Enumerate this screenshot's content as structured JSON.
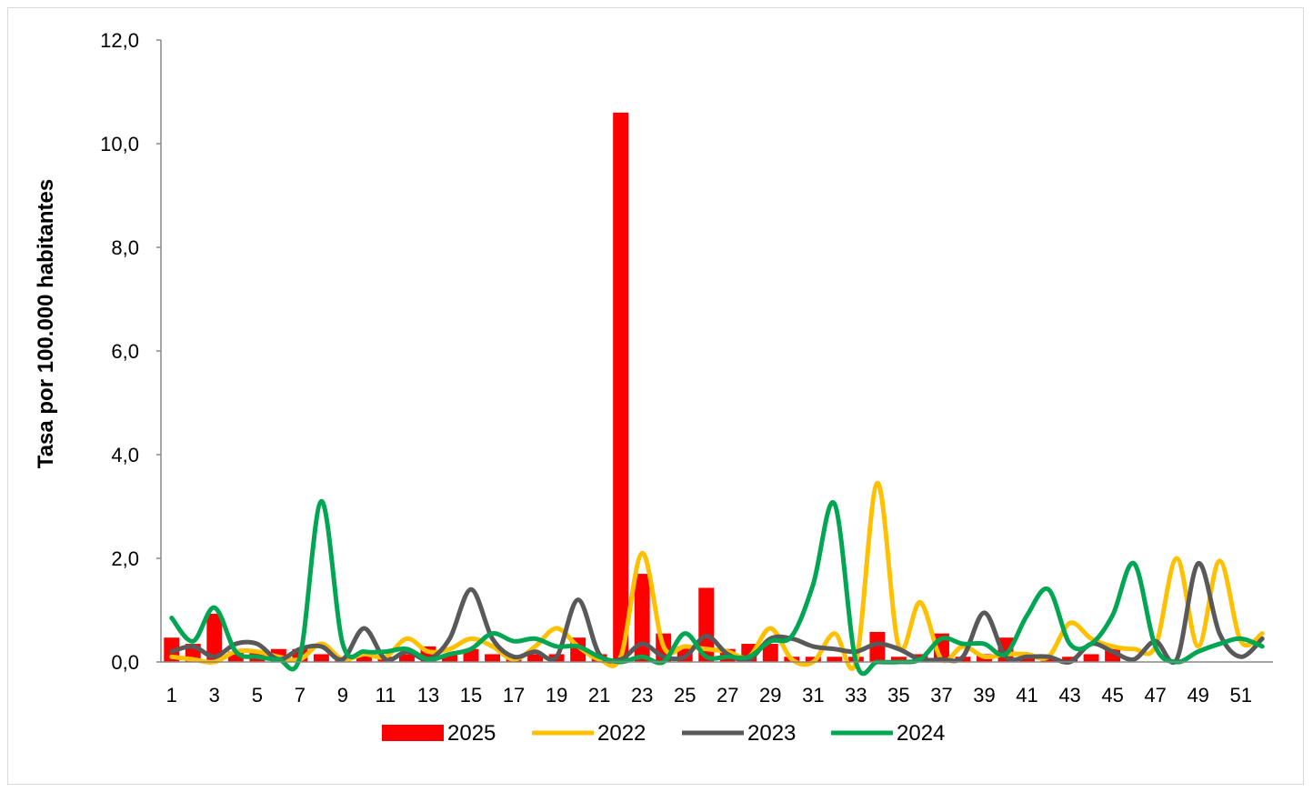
{
  "chart_data": {
    "type": "bar",
    "ylabel": "Tasa por 100.000 habitantes",
    "xlabel": "",
    "title": "",
    "ylim": [
      0,
      12
    ],
    "y_ticks": [
      "0,0",
      "2,0",
      "4,0",
      "6,0",
      "8,0",
      "10,0",
      "12,0"
    ],
    "x_tick_labels": [
      "1",
      "3",
      "5",
      "7",
      "9",
      "11",
      "13",
      "15",
      "17",
      "19",
      "21",
      "23",
      "25",
      "27",
      "29",
      "31",
      "33",
      "35",
      "37",
      "39",
      "41",
      "43",
      "45",
      "47",
      "49",
      "51"
    ],
    "weeks": [
      1,
      2,
      3,
      4,
      5,
      6,
      7,
      8,
      9,
      10,
      11,
      12,
      13,
      14,
      15,
      16,
      17,
      18,
      19,
      20,
      21,
      22,
      23,
      24,
      25,
      26,
      27,
      28,
      29,
      30,
      31,
      32,
      33,
      34,
      35,
      36,
      37,
      38,
      39,
      40,
      41,
      42,
      43,
      44,
      45,
      46,
      47,
      48,
      49,
      50,
      51,
      52
    ],
    "legend_position": "bottom",
    "grid": false,
    "series": [
      {
        "name": "2025",
        "kind": "bar",
        "color": "#ff0000",
        "values": [
          0.47,
          0.35,
          0.93,
          0.2,
          0.2,
          0.25,
          0.25,
          0.15,
          0.1,
          0.15,
          0.1,
          0.15,
          0.3,
          0.15,
          0.25,
          0.15,
          0.1,
          0.15,
          0.15,
          0.47,
          0.15,
          10.6,
          1.7,
          0.55,
          0.3,
          1.43,
          0.25,
          0.35,
          0.35,
          0.1,
          0.1,
          0.1,
          0.1,
          0.58,
          0.1,
          0.15,
          0.55,
          0.1,
          0.15,
          0.47,
          0.1,
          0.1,
          0.1,
          0.15,
          0.25,
          null,
          null,
          null,
          null,
          null,
          null,
          null
        ]
      },
      {
        "name": "2022",
        "kind": "line",
        "color": "#ffc000",
        "values": [
          0.1,
          0.05,
          0.0,
          0.2,
          0.2,
          0.1,
          0.05,
          0.35,
          0.05,
          0.15,
          0.1,
          0.45,
          0.2,
          0.25,
          0.45,
          0.3,
          0.05,
          0.3,
          0.65,
          0.3,
          0.05,
          0.1,
          2.1,
          0.3,
          0.3,
          0.25,
          0.2,
          0.1,
          0.65,
          0.05,
          0.0,
          0.55,
          0.0,
          3.45,
          0.3,
          1.15,
          0.05,
          0.3,
          0.1,
          0.15,
          0.15,
          0.1,
          0.75,
          0.45,
          0.3,
          0.25,
          0.3,
          2.0,
          0.3,
          1.95,
          0.4,
          0.55
        ]
      },
      {
        "name": "2023",
        "kind": "line",
        "color": "#595959",
        "values": [
          0.2,
          0.3,
          0.1,
          0.35,
          0.35,
          0.05,
          0.25,
          0.3,
          0.05,
          0.65,
          0.05,
          0.2,
          0.05,
          0.45,
          1.4,
          0.45,
          0.1,
          0.2,
          0.1,
          1.2,
          0.15,
          0.05,
          0.35,
          0.1,
          0.1,
          0.5,
          0.15,
          0.05,
          0.45,
          0.45,
          0.3,
          0.25,
          0.2,
          0.35,
          0.25,
          0.05,
          0.05,
          0.1,
          0.95,
          0.1,
          0.1,
          0.1,
          0.0,
          0.35,
          0.2,
          0.05,
          0.4,
          0.05,
          1.9,
          0.55,
          0.1,
          0.45
        ]
      },
      {
        "name": "2024",
        "kind": "line",
        "color": "#00a651",
        "values": [
          0.85,
          0.4,
          1.05,
          0.2,
          0.1,
          0.05,
          0.1,
          3.1,
          0.35,
          0.2,
          0.2,
          0.25,
          0.05,
          0.15,
          0.25,
          0.55,
          0.4,
          0.45,
          0.3,
          0.3,
          0.1,
          0.0,
          0.1,
          0.0,
          0.55,
          0.1,
          0.1,
          0.1,
          0.4,
          0.5,
          1.5,
          3.05,
          0.0,
          0.0,
          0.0,
          0.05,
          0.45,
          0.35,
          0.35,
          0.15,
          0.9,
          1.4,
          0.35,
          0.35,
          0.9,
          1.9,
          0.3,
          0.0,
          0.2,
          0.35,
          0.45,
          0.3
        ]
      }
    ]
  }
}
